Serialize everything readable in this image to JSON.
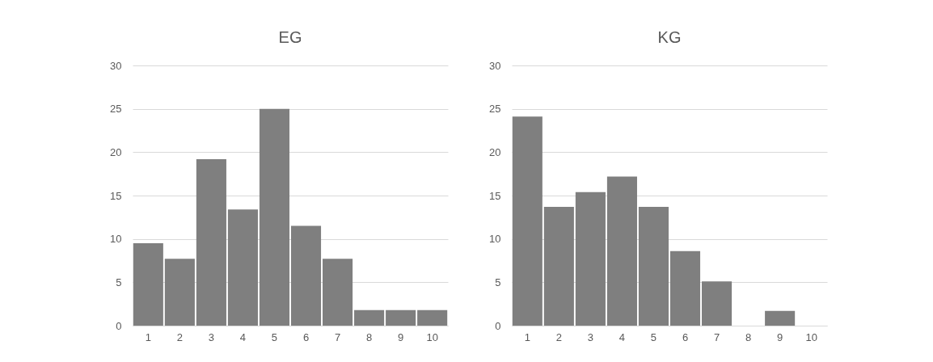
{
  "chart_data": [
    {
      "type": "bar",
      "title": "EG",
      "categories": [
        "1",
        "2",
        "3",
        "4",
        "5",
        "6",
        "7",
        "8",
        "9",
        "10"
      ],
      "values": [
        9.5,
        7.7,
        19.2,
        13.4,
        25,
        11.5,
        7.7,
        1.8,
        1.8,
        1.8
      ],
      "color": "#7f7f7f",
      "ylim": [
        0,
        30
      ],
      "yticks": [
        0,
        5,
        10,
        15,
        20,
        25,
        30
      ],
      "grid": "y"
    },
    {
      "type": "bar",
      "title": "KG",
      "categories": [
        "1",
        "2",
        "3",
        "4",
        "5",
        "6",
        "7",
        "8",
        "9",
        "10"
      ],
      "values": [
        24.1,
        13.7,
        15.4,
        17.2,
        13.7,
        8.6,
        5.1,
        0,
        1.7,
        0
      ],
      "color": "#7f7f7f",
      "ylim": [
        0,
        30
      ],
      "yticks": [
        0,
        5,
        10,
        15,
        20,
        25,
        30
      ],
      "grid": "y"
    }
  ]
}
